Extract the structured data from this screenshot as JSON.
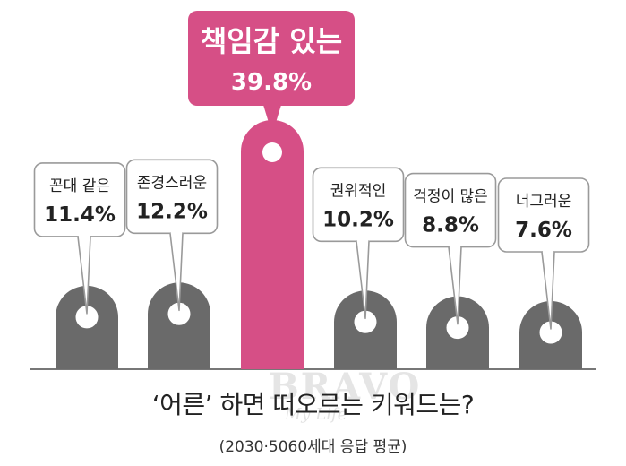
{
  "chart_data": {
    "type": "bar",
    "categories": [
      "꼰대 같은",
      "존경스러운",
      "책임감 있는",
      "권위적인",
      "걱정이 많은",
      "너그러운"
    ],
    "values": [
      11.4,
      12.2,
      39.8,
      10.2,
      8.8,
      7.6
    ],
    "value_labels": [
      "11.4%",
      "12.2%",
      "39.8%",
      "10.2%",
      "8.8%",
      "7.6%"
    ],
    "highlight_index": 2,
    "title": "‘어른’ 하면 떠오르는 키워드는?",
    "subtitle": "(2030·5060세대 응답 평균)"
  },
  "colors": {
    "bar": "#6a6a6a",
    "highlight": "#d64f86",
    "callout_border": "#9a9a9a",
    "text": "#222222"
  },
  "watermark": {
    "main": "BRAVO",
    "sub": "My Life"
  }
}
